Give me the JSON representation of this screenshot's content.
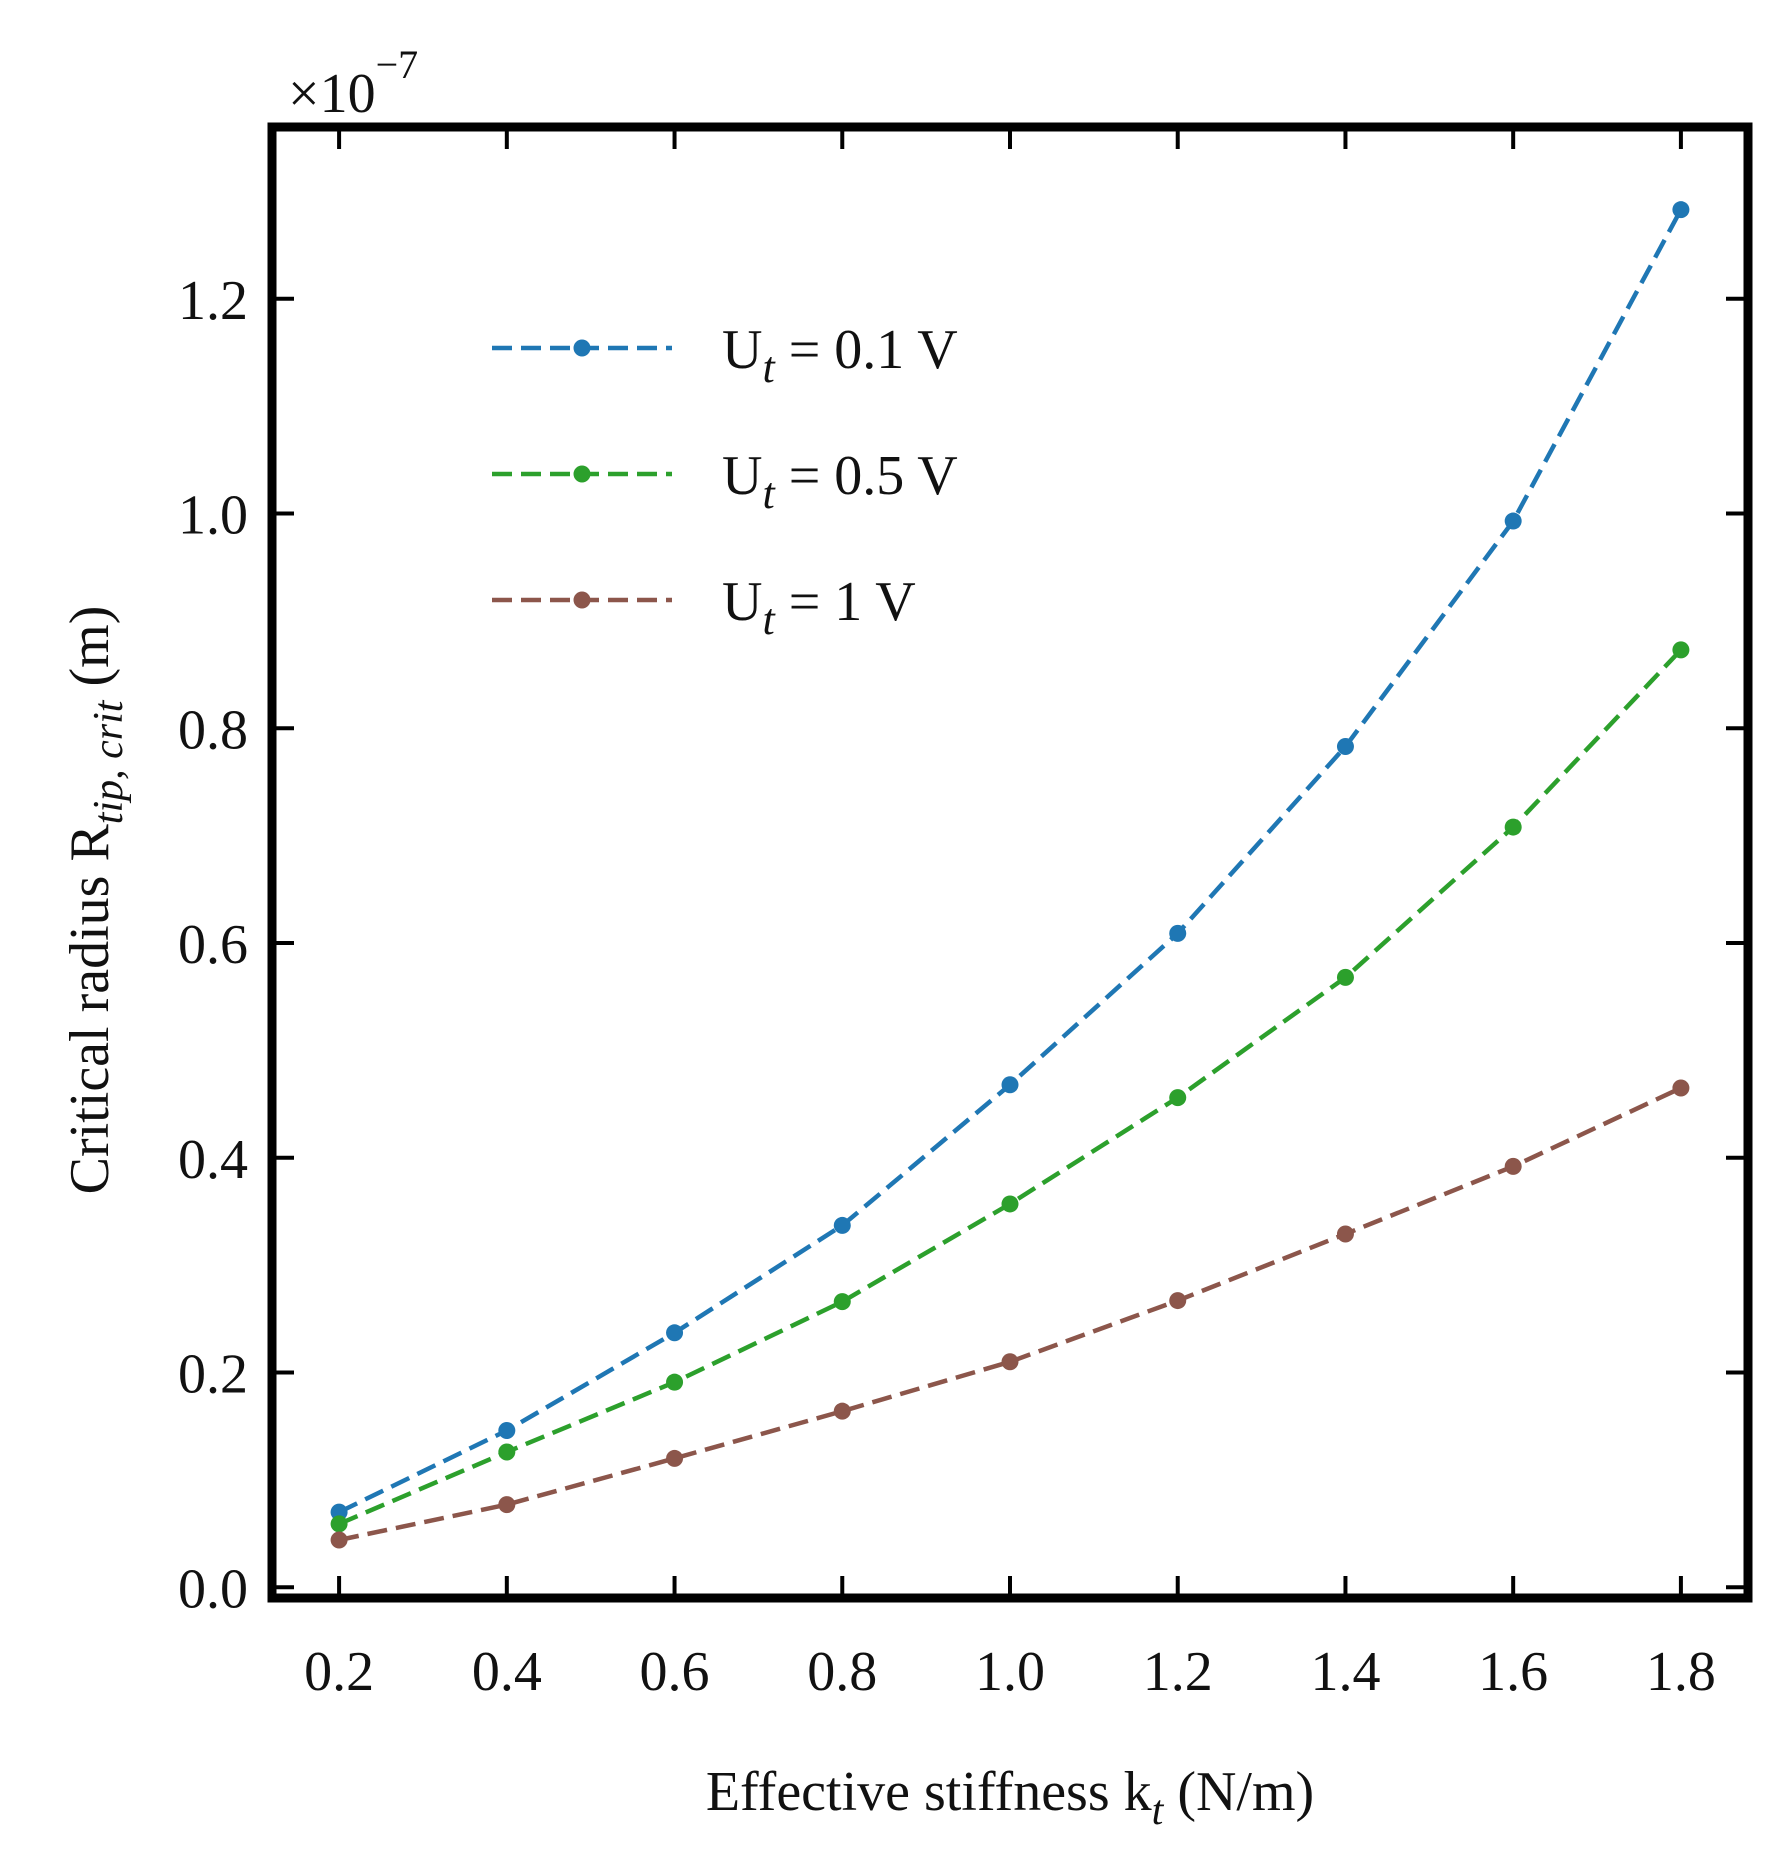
{
  "chart_data": {
    "type": "line",
    "title": "",
    "xlabel": "Effective stiffness k",
    "xlabel_sub": "t",
    "xlabel_unit": " (N/m)",
    "ylabel": "Critical radius R",
    "ylabel_sub": "tip, crit",
    "ylabel_unit": " (m)",
    "offset_text": "×10",
    "offset_exp": "−7",
    "xlim": [
      0.12,
      1.88
    ],
    "ylim": [
      -0.01,
      1.36
    ],
    "x_ticks": [
      0.2,
      0.4,
      0.6,
      0.8,
      1.0,
      1.2,
      1.4,
      1.6,
      1.8
    ],
    "x_tick_labels": [
      "0.2",
      "0.4",
      "0.6",
      "0.8",
      "1.0",
      "1.2",
      "1.4",
      "1.6",
      "1.8"
    ],
    "y_ticks": [
      0.0,
      0.2,
      0.4,
      0.6,
      0.8,
      1.0,
      1.2
    ],
    "y_tick_labels": [
      "0.0",
      "0.2",
      "0.4",
      "0.6",
      "0.8",
      "1.0",
      "1.2"
    ],
    "grid": false,
    "legend_position": "upper-left",
    "x": [
      0.2,
      0.4,
      0.6,
      0.8,
      1.0,
      1.2,
      1.4,
      1.6,
      1.8
    ],
    "series": [
      {
        "name": "U",
        "name_sub": "t",
        "name_rest": " = 0.1 V",
        "color": "#1f77b4",
        "values": [
          0.07,
          0.146,
          0.237,
          0.337,
          0.468,
          0.609,
          0.783,
          0.993,
          1.283
        ]
      },
      {
        "name": "U",
        "name_sub": "t",
        "name_rest": " = 0.5 V",
        "color": "#2ca02c",
        "values": [
          0.059,
          0.126,
          0.191,
          0.266,
          0.357,
          0.456,
          0.568,
          0.708,
          0.873
        ]
      },
      {
        "name": "U",
        "name_sub": "t",
        "name_rest": " = 1 V",
        "color": "#8c564b",
        "values": [
          0.044,
          0.077,
          0.12,
          0.164,
          0.21,
          0.267,
          0.329,
          0.392,
          0.465
        ]
      }
    ]
  }
}
